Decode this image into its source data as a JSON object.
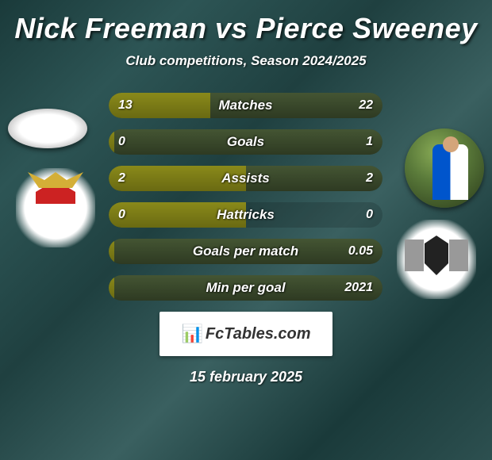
{
  "title": "Nick Freeman vs Pierce Sweeney",
  "subtitle": "Club competitions, Season 2024/2025",
  "date": "15 february 2025",
  "logo_text": "FcTables.com",
  "colors": {
    "left_bar": "#8a8a1a",
    "right_bar": "#445533",
    "empty_bar": "rgba(30,45,45,0.35)"
  },
  "stats": [
    {
      "label": "Matches",
      "left_val": "13",
      "right_val": "22",
      "left_pct": 37,
      "right_pct": 63
    },
    {
      "label": "Goals",
      "left_val": "0",
      "right_val": "1",
      "left_pct": 2,
      "right_pct": 98
    },
    {
      "label": "Assists",
      "left_val": "2",
      "right_val": "2",
      "left_pct": 50,
      "right_pct": 50
    },
    {
      "label": "Hattricks",
      "left_val": "0",
      "right_val": "0",
      "left_pct": 50,
      "right_pct": 0
    },
    {
      "label": "Goals per match",
      "left_val": "",
      "right_val": "0.05",
      "left_pct": 2,
      "right_pct": 98
    },
    {
      "label": "Min per goal",
      "left_val": "",
      "right_val": "2021",
      "left_pct": 2,
      "right_pct": 98
    }
  ]
}
